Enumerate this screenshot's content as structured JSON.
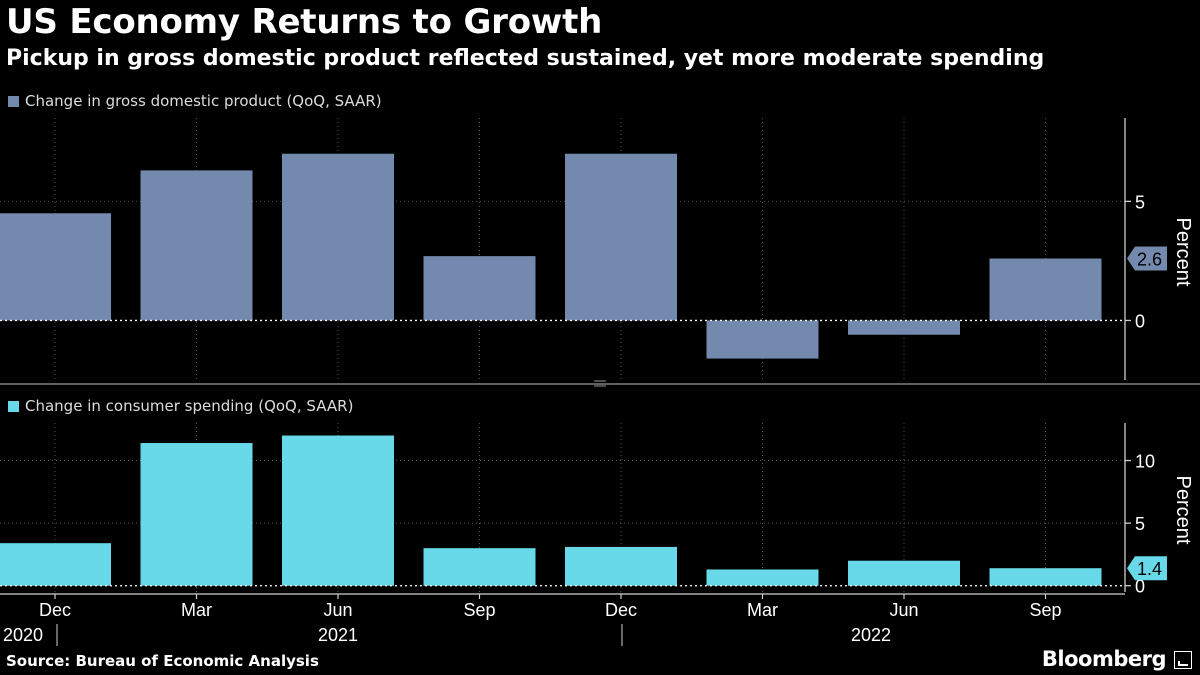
{
  "title": "US Economy Returns to Growth",
  "subtitle": "Pickup in gross domestic product reflected sustained, yet more moderate spending",
  "source": "Source: Bureau of Economic Analysis",
  "brand": "Bloomberg",
  "colors": {
    "gdp": "#7389ae",
    "consumer": "#67d9e8",
    "background": "#000000",
    "grid": "#555555"
  },
  "chart_data": [
    {
      "type": "bar",
      "legend": "Change in gross domestic product (QoQ, SAAR)",
      "ylabel": "Percent",
      "categories": [
        "Dec 2020",
        "Mar 2021",
        "Jun 2021",
        "Sep 2021",
        "Dec 2021",
        "Mar 2022",
        "Jun 2022",
        "Sep 2022"
      ],
      "values": [
        4.5,
        6.3,
        7.0,
        2.7,
        7.0,
        -1.6,
        -0.6,
        2.6
      ],
      "yticks": [
        0,
        5
      ],
      "ylim": [
        -2.5,
        8.5
      ],
      "last_value_label": "2.6"
    },
    {
      "type": "bar",
      "legend": "Change in consumer spending (QoQ, SAAR)",
      "ylabel": "Percent",
      "categories": [
        "Dec 2020",
        "Mar 2021",
        "Jun 2021",
        "Sep 2021",
        "Dec 2021",
        "Mar 2022",
        "Jun 2022",
        "Sep 2022"
      ],
      "values": [
        3.4,
        11.4,
        12.0,
        3.0,
        3.1,
        1.3,
        2.0,
        1.4
      ],
      "yticks": [
        0,
        5,
        10
      ],
      "ylim": [
        -0.5,
        13
      ],
      "last_value_label": "1.4"
    }
  ],
  "x_axis": {
    "month_labels": [
      "Dec",
      "Mar",
      "Jun",
      "Sep",
      "Dec",
      "Mar",
      "Jun",
      "Sep"
    ],
    "year_labels": [
      "2020",
      "2021",
      "2022"
    ]
  }
}
